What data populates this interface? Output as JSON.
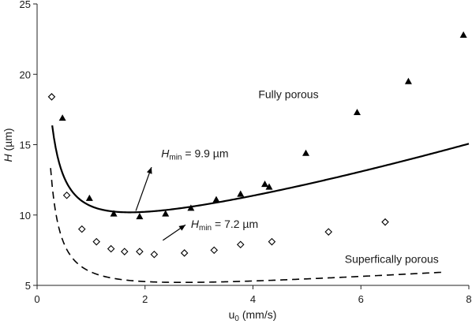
{
  "chart_data": {
    "type": "scatter",
    "xlabel_main": "u",
    "xlabel_sub": "0",
    "xlabel_unit": " (mm/s)",
    "ylabel_main": "H",
    "ylabel_unit": " (µm)",
    "xlim": [
      0,
      8
    ],
    "ylim": [
      5,
      25
    ],
    "xticks": [
      0,
      2,
      4,
      6,
      8
    ],
    "yticks": [
      5,
      10,
      15,
      20,
      25
    ],
    "grid": false,
    "series": [
      {
        "marker": "triangle-filled",
        "line": "solid",
        "x": [
          0.47,
          0.97,
          1.42,
          1.9,
          2.38,
          2.85,
          3.32,
          3.77,
          4.22,
          4.3,
          4.98,
          5.93,
          6.88,
          7.9
        ],
        "y": [
          16.9,
          11.2,
          10.1,
          9.9,
          10.1,
          10.5,
          11.1,
          11.5,
          12.2,
          12.0,
          14.4,
          17.3,
          19.5,
          22.8
        ],
        "curve": {
          "a": 8.0,
          "b": 0.7,
          "c": 0.8,
          "xstart": 0.28,
          "xend": 8.0
        }
      },
      {
        "marker": "diamond-open",
        "line": "dashed",
        "x": [
          0.27,
          0.55,
          0.83,
          1.1,
          1.37,
          1.62,
          1.9,
          2.17,
          2.73,
          3.28,
          3.77,
          4.35,
          5.4,
          6.45
        ],
        "y": [
          18.4,
          11.4,
          9.0,
          8.1,
          7.6,
          7.4,
          7.4,
          7.2,
          7.3,
          7.5,
          7.9,
          8.1,
          8.8,
          9.5
        ],
        "curve": {
          "a": 4.0,
          "b": 1.52,
          "c": 0.23,
          "xstart": 0.25,
          "xend": 7.5
        }
      }
    ],
    "annotations": [
      {
        "main": "Fully porous",
        "x": 4.1,
        "y": 18.3
      },
      {
        "main": "Superfically porous",
        "x": 5.7,
        "y": 6.6
      },
      {
        "main": "H",
        "sub": "min",
        "rest": " = 9.9 µm",
        "x": 2.3,
        "y": 14.1,
        "arrow": {
          "from": [
            1.83,
            10.3
          ],
          "to": [
            2.12,
            13.4
          ]
        }
      },
      {
        "main": "H",
        "sub": "min",
        "rest": " = 7.2 µm",
        "x": 2.85,
        "y": 9.1,
        "arrow": {
          "from": [
            2.33,
            8.2
          ],
          "to": [
            2.75,
            9.3
          ]
        }
      }
    ]
  }
}
